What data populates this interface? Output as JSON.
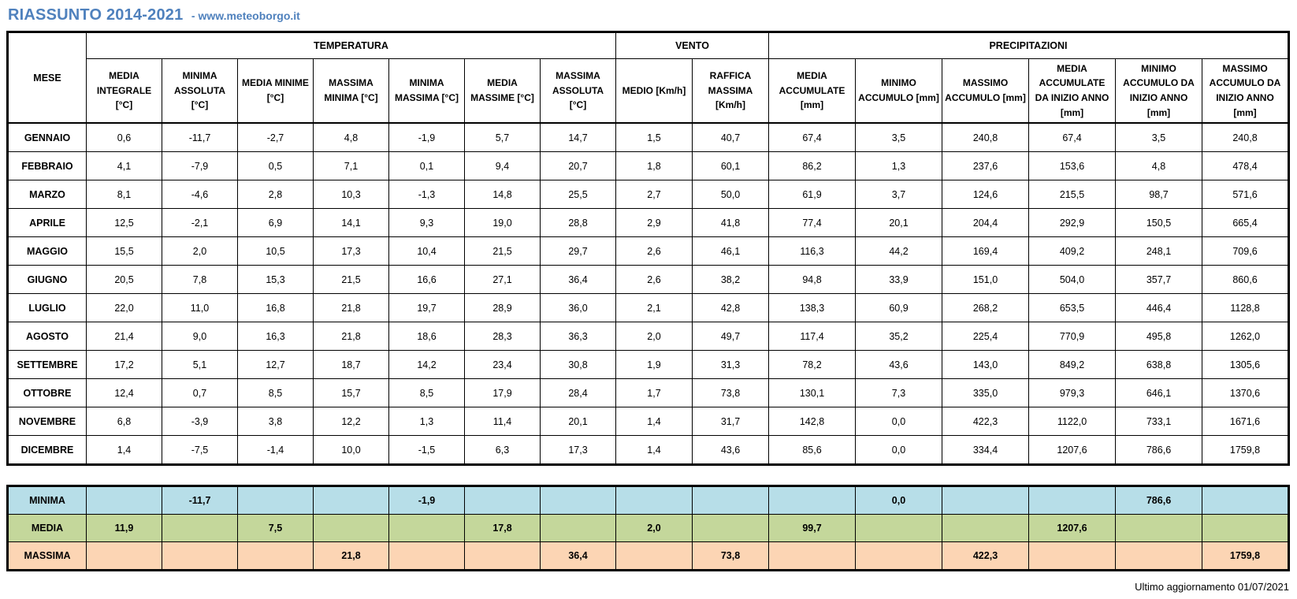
{
  "page": {
    "title": "RIASSUNTO 2014-2021",
    "subtitle": "- www.meteoborgo.it",
    "footer": "Ultimo aggiornamento 01/07/2021"
  },
  "colors": {
    "title_blue": "#4F81BD",
    "summary_minima_bg": "#B7DEE8",
    "summary_media_bg": "#C4D79B",
    "summary_massima_bg": "#FCD5B4",
    "border": "#000000"
  },
  "chart_data": {
    "type": "table",
    "title": "RIASSUNTO 2014-2021",
    "mese_header": "MESE",
    "groups": [
      {
        "label": "TEMPERATURA",
        "span": 7
      },
      {
        "label": "VENTO",
        "span": 2
      },
      {
        "label": "PRECIPITAZIONI",
        "span": 6
      }
    ],
    "columns": [
      "MEDIA INTEGRALE [°C]",
      "MINIMA ASSOLUTA [°C]",
      "MEDIA MINIME [°C]",
      "MASSIMA MINIMA [°C]",
      "MINIMA MASSIMA [°C]",
      "MEDIA MASSIME [°C]",
      "MASSIMA ASSOLUTA [°C]",
      "MEDIO [Km/h]",
      "RAFFICA MASSIMA [Km/h]",
      "MEDIA ACCUMULATE [mm]",
      "MINIMO ACCUMULO [mm]",
      "MASSIMO ACCUMULO [mm]",
      "MEDIA ACCUMULATE DA INIZIO ANNO [mm]",
      "MINIMO ACCUMULO DA INIZIO ANNO [mm]",
      "MASSIMO ACCUMULO DA INIZIO ANNO [mm]"
    ],
    "months": [
      {
        "mese": "GENNAIO",
        "values": [
          "0,6",
          "-11,7",
          "-2,7",
          "4,8",
          "-1,9",
          "5,7",
          "14,7",
          "1,5",
          "40,7",
          "67,4",
          "3,5",
          "240,8",
          "67,4",
          "3,5",
          "240,8"
        ]
      },
      {
        "mese": "FEBBRAIO",
        "values": [
          "4,1",
          "-7,9",
          "0,5",
          "7,1",
          "0,1",
          "9,4",
          "20,7",
          "1,8",
          "60,1",
          "86,2",
          "1,3",
          "237,6",
          "153,6",
          "4,8",
          "478,4"
        ]
      },
      {
        "mese": "MARZO",
        "values": [
          "8,1",
          "-4,6",
          "2,8",
          "10,3",
          "-1,3",
          "14,8",
          "25,5",
          "2,7",
          "50,0",
          "61,9",
          "3,7",
          "124,6",
          "215,5",
          "98,7",
          "571,6"
        ]
      },
      {
        "mese": "APRILE",
        "values": [
          "12,5",
          "-2,1",
          "6,9",
          "14,1",
          "9,3",
          "19,0",
          "28,8",
          "2,9",
          "41,8",
          "77,4",
          "20,1",
          "204,4",
          "292,9",
          "150,5",
          "665,4"
        ]
      },
      {
        "mese": "MAGGIO",
        "values": [
          "15,5",
          "2,0",
          "10,5",
          "17,3",
          "10,4",
          "21,5",
          "29,7",
          "2,6",
          "46,1",
          "116,3",
          "44,2",
          "169,4",
          "409,2",
          "248,1",
          "709,6"
        ]
      },
      {
        "mese": "GIUGNO",
        "values": [
          "20,5",
          "7,8",
          "15,3",
          "21,5",
          "16,6",
          "27,1",
          "36,4",
          "2,6",
          "38,2",
          "94,8",
          "33,9",
          "151,0",
          "504,0",
          "357,7",
          "860,6"
        ]
      },
      {
        "mese": "LUGLIO",
        "values": [
          "22,0",
          "11,0",
          "16,8",
          "21,8",
          "19,7",
          "28,9",
          "36,0",
          "2,1",
          "42,8",
          "138,3",
          "60,9",
          "268,2",
          "653,5",
          "446,4",
          "1128,8"
        ]
      },
      {
        "mese": "AGOSTO",
        "values": [
          "21,4",
          "9,0",
          "16,3",
          "21,8",
          "18,6",
          "28,3",
          "36,3",
          "2,0",
          "49,7",
          "117,4",
          "35,2",
          "225,4",
          "770,9",
          "495,8",
          "1262,0"
        ]
      },
      {
        "mese": "SETTEMBRE",
        "values": [
          "17,2",
          "5,1",
          "12,7",
          "18,7",
          "14,2",
          "23,4",
          "30,8",
          "1,9",
          "31,3",
          "78,2",
          "43,6",
          "143,0",
          "849,2",
          "638,8",
          "1305,6"
        ]
      },
      {
        "mese": "OTTOBRE",
        "values": [
          "12,4",
          "0,7",
          "8,5",
          "15,7",
          "8,5",
          "17,9",
          "28,4",
          "1,7",
          "73,8",
          "130,1",
          "7,3",
          "335,0",
          "979,3",
          "646,1",
          "1370,6"
        ]
      },
      {
        "mese": "NOVEMBRE",
        "values": [
          "6,8",
          "-3,9",
          "3,8",
          "12,2",
          "1,3",
          "11,4",
          "20,1",
          "1,4",
          "31,7",
          "142,8",
          "0,0",
          "422,3",
          "1122,0",
          "733,1",
          "1671,6"
        ]
      },
      {
        "mese": "DICEMBRE",
        "values": [
          "1,4",
          "-7,5",
          "-1,4",
          "10,0",
          "-1,5",
          "6,3",
          "17,3",
          "1,4",
          "43,6",
          "85,6",
          "0,0",
          "334,4",
          "1207,6",
          "786,6",
          "1759,8"
        ]
      }
    ],
    "summary": [
      {
        "label": "MINIMA",
        "color": "#B7DEE8",
        "values": [
          "",
          "-11,7",
          "",
          "",
          "-1,9",
          "",
          "",
          "",
          "",
          "",
          "0,0",
          "",
          "",
          "786,6",
          ""
        ]
      },
      {
        "label": "MEDIA",
        "color": "#C4D79B",
        "values": [
          "11,9",
          "",
          "7,5",
          "",
          "",
          "17,8",
          "",
          "2,0",
          "",
          "99,7",
          "",
          "",
          "1207,6",
          "",
          ""
        ]
      },
      {
        "label": "MASSIMA",
        "color": "#FCD5B4",
        "values": [
          "",
          "",
          "",
          "21,8",
          "",
          "",
          "36,4",
          "",
          "73,8",
          "",
          "",
          "422,3",
          "",
          "",
          "1759,8"
        ]
      }
    ]
  }
}
